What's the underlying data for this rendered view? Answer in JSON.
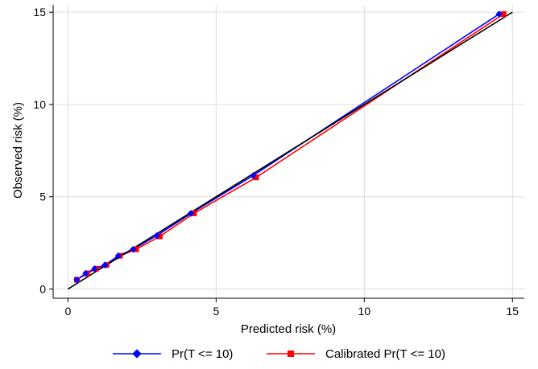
{
  "chart_data": {
    "type": "line",
    "title": "",
    "xlabel": "Predicted risk (%)",
    "ylabel": "Observed risk (%)",
    "xlim": [
      -0.5,
      15.4
    ],
    "ylim": [
      -0.5,
      15.4
    ],
    "xticks": [
      0,
      5,
      10,
      15
    ],
    "yticks": [
      0,
      5,
      10,
      15
    ],
    "grid": true,
    "legend_position": "bottom",
    "reference_line": {
      "from": [
        0,
        0
      ],
      "to": [
        15,
        15
      ],
      "color": "#000000"
    },
    "series": [
      {
        "name": "Pr(T <= 10)",
        "color": "#0000ff",
        "marker": "diamond",
        "x": [
          0.3,
          0.6,
          0.9,
          1.25,
          1.7,
          2.2,
          3.0,
          4.15,
          6.25,
          14.55
        ],
        "y": [
          0.5,
          0.85,
          1.1,
          1.3,
          1.8,
          2.15,
          2.9,
          4.1,
          6.15,
          14.9
        ]
      },
      {
        "name": "Calibrated Pr(T <= 10)",
        "color": "#ff0000",
        "marker": "square",
        "x": [
          0.3,
          0.65,
          0.95,
          1.3,
          1.75,
          2.3,
          3.1,
          4.25,
          6.35,
          14.7
        ],
        "y": [
          0.5,
          0.85,
          1.1,
          1.3,
          1.8,
          2.15,
          2.85,
          4.1,
          6.05,
          14.9
        ]
      }
    ]
  }
}
